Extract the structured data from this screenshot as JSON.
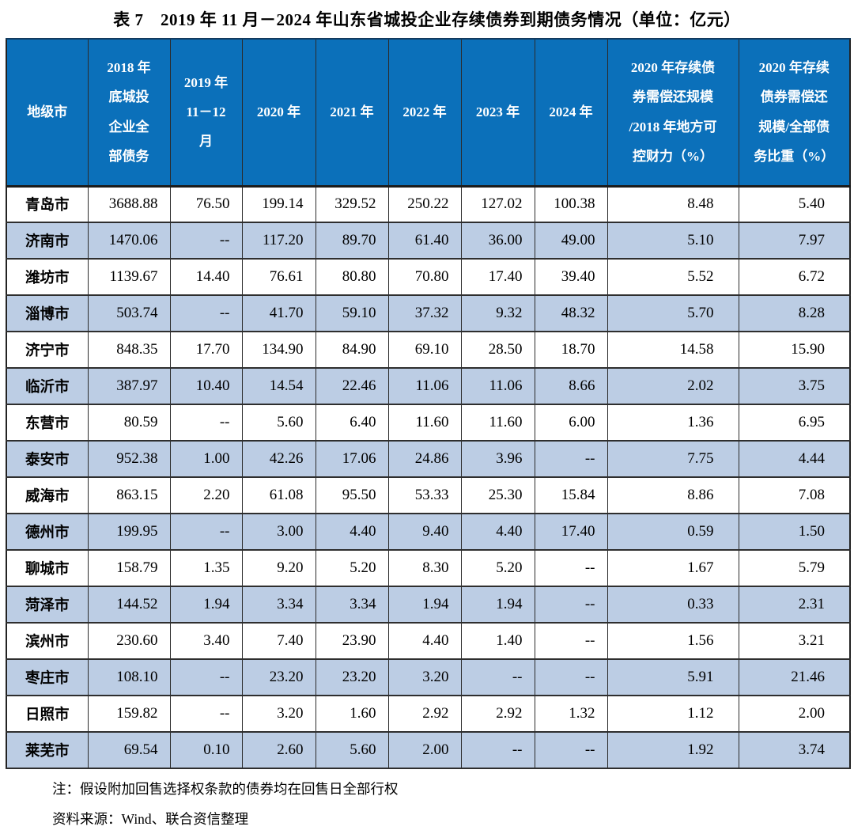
{
  "title": "表 7　2019 年 11 月－2024 年山东省城投企业存续债券到期债务情况（单位：亿元）",
  "colors": {
    "header_bg": "#0B70BA",
    "stripe_bg": "#BCCDE4",
    "header_text": "#FFFFFF",
    "body_text": "#000000",
    "border": "#2B2B2B"
  },
  "table": {
    "columns": [
      "地级市",
      "2018 年\n底城投\n企业全\n部债务",
      "2019 年\n11－12\n月",
      "2020 年",
      "2021 年",
      "2022 年",
      "2023 年",
      "2024 年",
      "2020 年存续债\n券需偿还规模\n/2018 年地方可\n控财力（%）",
      "2020 年存续\n债券需偿还\n规模/全部债\n务比重（%）"
    ],
    "rows": [
      {
        "city": "青岛市",
        "values": [
          "3688.88",
          "76.50",
          "199.14",
          "329.52",
          "250.22",
          "127.02",
          "100.38",
          "8.48",
          "5.40"
        ]
      },
      {
        "city": "济南市",
        "values": [
          "1470.06",
          "--",
          "117.20",
          "89.70",
          "61.40",
          "36.00",
          "49.00",
          "5.10",
          "7.97"
        ]
      },
      {
        "city": "潍坊市",
        "values": [
          "1139.67",
          "14.40",
          "76.61",
          "80.80",
          "70.80",
          "17.40",
          "39.40",
          "5.52",
          "6.72"
        ]
      },
      {
        "city": "淄博市",
        "values": [
          "503.74",
          "--",
          "41.70",
          "59.10",
          "37.32",
          "9.32",
          "48.32",
          "5.70",
          "8.28"
        ]
      },
      {
        "city": "济宁市",
        "values": [
          "848.35",
          "17.70",
          "134.90",
          "84.90",
          "69.10",
          "28.50",
          "18.70",
          "14.58",
          "15.90"
        ]
      },
      {
        "city": "临沂市",
        "values": [
          "387.97",
          "10.40",
          "14.54",
          "22.46",
          "11.06",
          "11.06",
          "8.66",
          "2.02",
          "3.75"
        ]
      },
      {
        "city": "东营市",
        "values": [
          "80.59",
          "--",
          "5.60",
          "6.40",
          "11.60",
          "11.60",
          "6.00",
          "1.36",
          "6.95"
        ]
      },
      {
        "city": "泰安市",
        "values": [
          "952.38",
          "1.00",
          "42.26",
          "17.06",
          "24.86",
          "3.96",
          "--",
          "7.75",
          "4.44"
        ]
      },
      {
        "city": "威海市",
        "values": [
          "863.15",
          "2.20",
          "61.08",
          "95.50",
          "53.33",
          "25.30",
          "15.84",
          "8.86",
          "7.08"
        ]
      },
      {
        "city": "德州市",
        "values": [
          "199.95",
          "--",
          "3.00",
          "4.40",
          "9.40",
          "4.40",
          "17.40",
          "0.59",
          "1.50"
        ]
      },
      {
        "city": "聊城市",
        "values": [
          "158.79",
          "1.35",
          "9.20",
          "5.20",
          "8.30",
          "5.20",
          "--",
          "1.67",
          "5.79"
        ]
      },
      {
        "city": "菏泽市",
        "values": [
          "144.52",
          "1.94",
          "3.34",
          "3.34",
          "1.94",
          "1.94",
          "--",
          "0.33",
          "2.31"
        ]
      },
      {
        "city": "滨州市",
        "values": [
          "230.60",
          "3.40",
          "7.40",
          "23.90",
          "4.40",
          "1.40",
          "--",
          "1.56",
          "3.21"
        ]
      },
      {
        "city": "枣庄市",
        "values": [
          "108.10",
          "--",
          "23.20",
          "23.20",
          "3.20",
          "--",
          "--",
          "5.91",
          "21.46"
        ]
      },
      {
        "city": "日照市",
        "values": [
          "159.82",
          "--",
          "3.20",
          "1.60",
          "2.92",
          "2.92",
          "1.32",
          "1.12",
          "2.00"
        ]
      },
      {
        "city": "莱芜市",
        "values": [
          "69.54",
          "0.10",
          "2.60",
          "5.60",
          "2.00",
          "--",
          "--",
          "1.92",
          "3.74"
        ]
      }
    ]
  },
  "notes": [
    "注：假设附加回售选择权条款的债券均在回售日全部行权",
    "资料来源：Wind、联合资信整理"
  ]
}
